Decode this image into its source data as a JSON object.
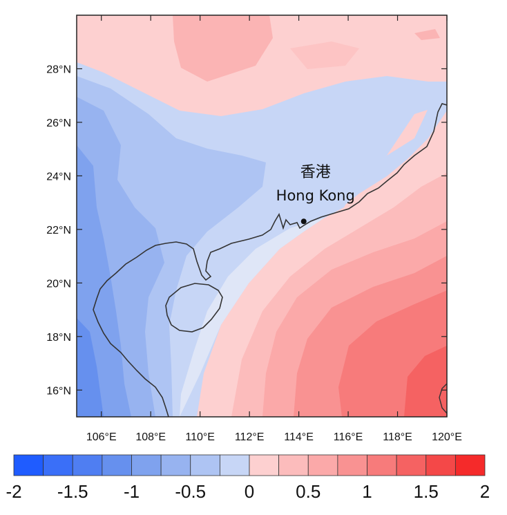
{
  "map": {
    "lat_ticks": [
      "28°N",
      "26°N",
      "24°N",
      "22°N",
      "20°N",
      "18°N",
      "16°N"
    ],
    "lon_ticks": [
      "106°E",
      "108°E",
      "110°E",
      "112°E",
      "114°E",
      "116°E",
      "118°E",
      "120°E"
    ],
    "extent": {
      "lon": [
        105,
        120
      ],
      "lat": [
        15,
        30
      ]
    },
    "marker": {
      "name_zh": "香港",
      "name_en": "Hong Kong",
      "lon": 114.2,
      "lat": 22.3
    }
  },
  "colorbar": {
    "tick_labels": [
      "-2",
      "-1.5",
      "-1",
      "-0.5",
      "0",
      "0.5",
      "1",
      "1.5",
      "2"
    ],
    "range": [
      -2,
      2
    ],
    "colors": [
      "#1f5cff",
      "#3a6ff8",
      "#4f7ef2",
      "#6690ee",
      "#7fa2ee",
      "#97b3f0",
      "#aec4f3",
      "#c7d6f6",
      "#fdd0d0",
      "#fcbcbc",
      "#fba9a9",
      "#f99292",
      "#f77b7b",
      "#f56262",
      "#f44848",
      "#f52a2a"
    ]
  }
}
